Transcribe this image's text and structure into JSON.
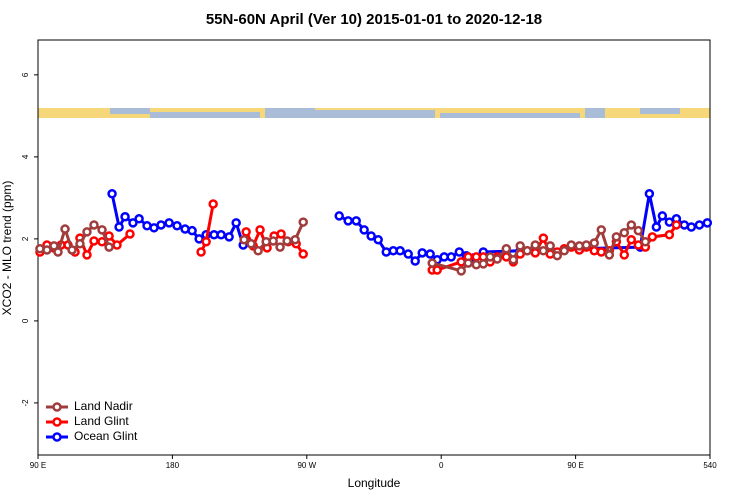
{
  "chart_data": {
    "type": "line",
    "title": "55N-60N April (Ver 10)   2015-01-01 to 2020-12-18",
    "x_label": "Longitude",
    "y_label": "XCO2 - MLO trend (ppm)",
    "xlim": [
      90,
      540
    ],
    "ylim": [
      -3.27,
      6.85
    ],
    "xticks": [
      {
        "value": 90,
        "label": "90 E"
      },
      180,
      {
        "value": 270,
        "label": "90 W"
      },
      {
        "value": 360,
        "label": "0"
      },
      {
        "value": 450,
        "label": "90 E"
      },
      540
    ],
    "yticks": [
      -2,
      0,
      2,
      4,
      6
    ],
    "legend": "bottom-left",
    "series": [
      {
        "name": "Land Nadir",
        "color": "#a03c3c",
        "x": [
          91.3,
          96.0,
          100.7,
          103.4,
          108.1,
          112.8,
          118.1,
          122.8,
          127.5,
          132.9,
          137.6,
          190,
          228.0,
          232.7,
          237.4,
          242.8,
          247.5,
          252.1,
          256.8,
          262.2,
          267.6,
          320,
          354.0,
          373.4,
          378.1,
          383.5,
          388.2,
          392.8,
          397.5,
          403.6,
          408.3,
          412.9,
          417.6,
          423.0,
          428.4,
          433.0,
          437.7,
          442.4,
          447.1,
          452.5,
          457.2,
          462.5,
          467.2,
          472.6,
          477.3,
          482.6,
          487.3,
          492.0,
          496.7
        ],
        "values": [
          1.76,
          1.73,
          1.83,
          1.68,
          2.24,
          1.73,
          1.88,
          2.17,
          2.34,
          2.22,
          1.8,
          null,
          1.98,
          1.88,
          1.71,
          1.93,
          1.95,
          1.8,
          1.95,
          1.98,
          2.41,
          null,
          1.41,
          1.22,
          1.41,
          1.37,
          1.39,
          1.56,
          1.51,
          1.76,
          1.49,
          1.83,
          1.71,
          1.85,
          1.71,
          1.83,
          1.59,
          1.71,
          1.85,
          1.83,
          1.85,
          1.9,
          2.22,
          1.61,
          2.05,
          2.15,
          2.34,
          2.2,
          1.93
        ]
      },
      {
        "name": "Land Glint",
        "color": "#ff0000",
        "x": [
          91.3,
          96.0,
          100.7,
          105.4,
          110.1,
          114.8,
          118.1,
          122.8,
          127.5,
          132.9,
          137.6,
          142.9,
          151.6,
          170,
          199.2,
          202.6,
          207.3,
          225,
          229.4,
          234.1,
          238.7,
          243.4,
          248.1,
          252.8,
          257.5,
          262.9,
          267.6,
          320,
          354.0,
          357.3,
          373.4,
          378.1,
          383.5,
          388.2,
          392.8,
          397.5,
          403.6,
          408.3,
          412.9,
          417.6,
          423.0,
          428.4,
          433.0,
          437.7,
          442.4,
          447.1,
          452.5,
          457.2,
          462.5,
          467.2,
          472.6,
          477.3,
          482.6,
          487.3,
          492.0,
          496.7,
          501.4,
          512.8,
          517.5
        ],
        "values": [
          1.68,
          1.85,
          1.78,
          1.85,
          1.85,
          1.68,
          2.02,
          1.61,
          1.95,
          1.93,
          2.07,
          1.85,
          2.12,
          null,
          1.68,
          1.93,
          2.85,
          null,
          2.17,
          1.83,
          2.22,
          1.78,
          2.07,
          2.12,
          1.93,
          1.88,
          1.63,
          null,
          1.24,
          1.24,
          1.44,
          1.56,
          1.56,
          1.56,
          1.44,
          1.56,
          1.56,
          1.44,
          1.63,
          1.71,
          1.66,
          2.02,
          1.63,
          1.68,
          1.76,
          1.8,
          1.73,
          1.8,
          1.71,
          1.68,
          1.71,
          1.93,
          1.61,
          1.98,
          1.85,
          1.8,
          2.05,
          2.1,
          2.34
        ]
      },
      {
        "name": "Ocean Glint",
        "color": "#0000ff",
        "x": [
          139.6,
          144.3,
          148.3,
          153.6,
          157.7,
          163.0,
          167.7,
          172.4,
          177.8,
          183.1,
          188.5,
          193.2,
          197.9,
          202.6,
          207.9,
          212.6,
          218.0,
          222.7,
          227.4,
          260,
          291.7,
          297.7,
          303.1,
          308.4,
          313.1,
          317.8,
          323.2,
          327.9,
          332.5,
          337.9,
          342.6,
          347.3,
          352.6,
          357.3,
          362.0,
          366.7,
          372.1,
          376.8,
          382.1,
          388.2,
          412.9,
          453.1,
          493.3,
          499.4,
          504.1,
          508.1,
          512.8,
          517.5,
          522.8,
          527.5,
          532.9,
          538.2
        ],
        "values": [
          3.1,
          2.29,
          2.54,
          2.39,
          2.49,
          2.32,
          2.27,
          2.34,
          2.39,
          2.32,
          2.24,
          2.2,
          2.0,
          2.1,
          2.1,
          2.1,
          2.05,
          2.39,
          1.85,
          null,
          2.56,
          2.44,
          2.44,
          2.22,
          2.07,
          1.98,
          1.68,
          1.71,
          1.71,
          1.63,
          1.46,
          1.66,
          1.63,
          1.49,
          1.56,
          1.56,
          1.68,
          1.59,
          1.54,
          1.68,
          1.71,
          1.76,
          1.8,
          3.1,
          2.29,
          2.56,
          2.41,
          2.49,
          2.34,
          2.29,
          2.34,
          2.39
        ]
      }
    ]
  }
}
